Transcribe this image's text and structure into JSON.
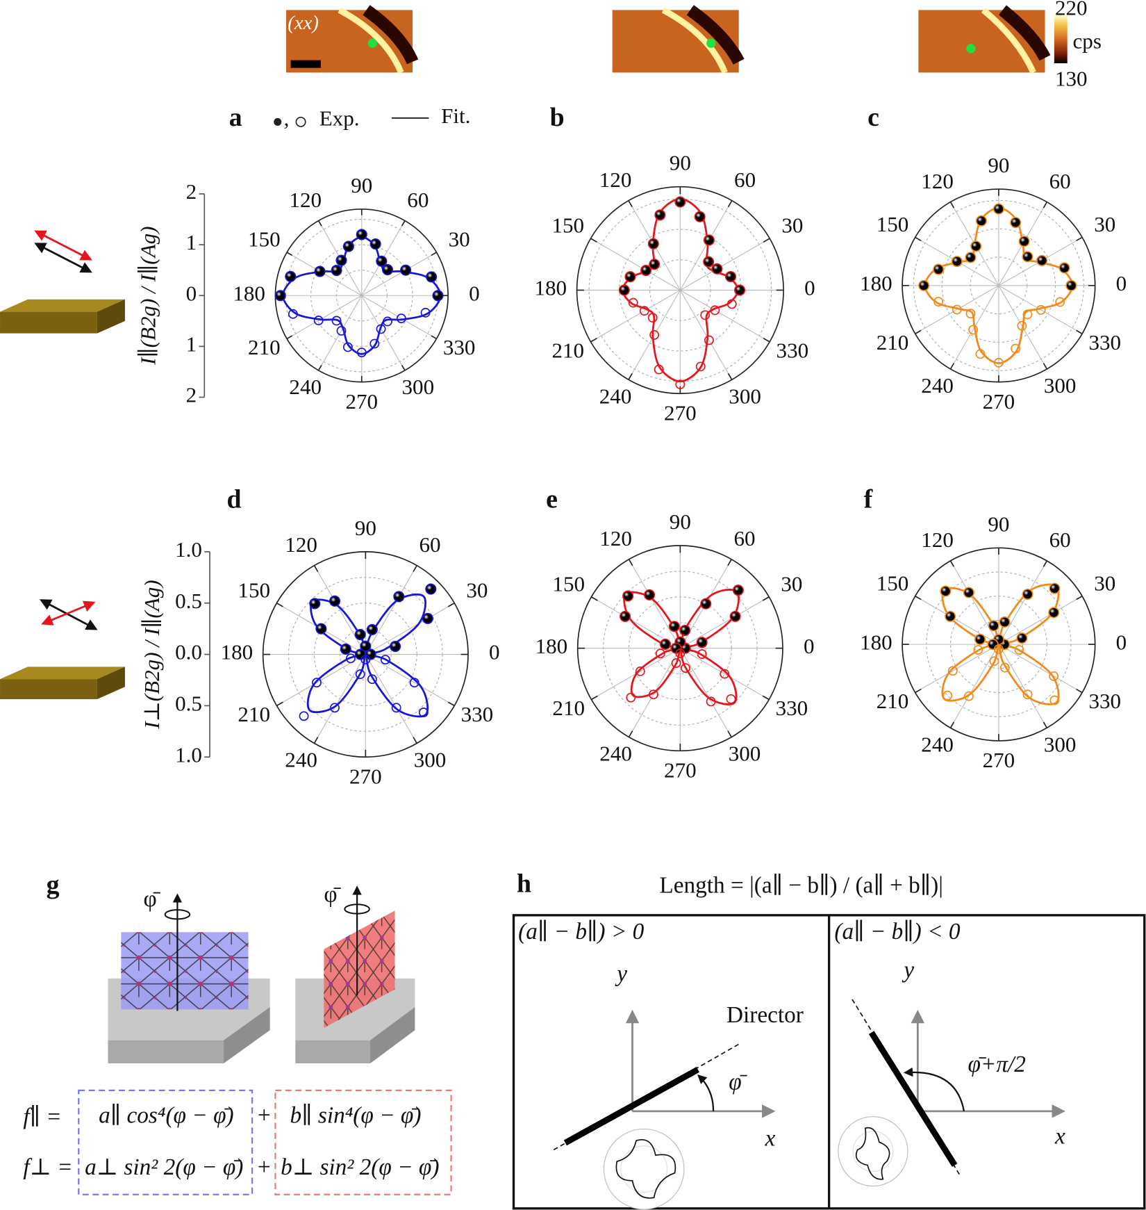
{
  "insets": {
    "label": "(xx)",
    "colorbar": {
      "max": 220,
      "unit": "cps",
      "min": 130
    }
  },
  "chart_data": [
    {
      "type": "polar",
      "panel": "a",
      "legend": true,
      "rlim": [
        0,
        1.7
      ],
      "rticks": [
        0.5,
        1,
        1.5
      ],
      "ylabel": "I∥(B2g) / I∥(Ag)",
      "yticks": [
        2,
        1,
        0,
        {
          "value": -1,
          "label": "1"
        },
        {
          "value": -2,
          "label": "2"
        }
      ],
      "color": "#1717d8",
      "theta_ticks": [
        0,
        30,
        60,
        90,
        120,
        150,
        180,
        210,
        240,
        270,
        300,
        330
      ],
      "theta": [
        0,
        15,
        30,
        45,
        60,
        75,
        90,
        105,
        120,
        135,
        150,
        165,
        180,
        195,
        210,
        225,
        240,
        255,
        270,
        285,
        300,
        315,
        330,
        345
      ],
      "series": [
        {
          "name": "Exp.",
          "values": [
            1.5,
            1.42,
            1.0,
            0.72,
            0.78,
            1.05,
            1.2,
            1.0,
            0.8,
            0.7,
            0.95,
            1.45,
            1.6,
            1.4,
            0.98,
            0.7,
            0.8,
            1.05,
            1.12,
            0.98,
            0.76,
            0.72,
            0.9,
            1.3
          ]
        },
        {
          "name": "Fit.",
          "values": [
            1.55,
            1.35,
            0.94,
            0.68,
            0.74,
            1.01,
            1.15,
            1.01,
            0.74,
            0.68,
            0.94,
            1.35,
            1.55,
            1.35,
            0.94,
            0.68,
            0.74,
            1.01,
            1.15,
            1.01,
            0.74,
            0.68,
            0.94,
            1.35
          ]
        }
      ]
    },
    {
      "type": "polar",
      "panel": "b",
      "rlim": [
        0,
        1.7
      ],
      "rticks": [
        0.5,
        1,
        1.5
      ],
      "color": "#e8141c",
      "theta_ticks": [
        0,
        30,
        60,
        90,
        120,
        150,
        180,
        210,
        240,
        270,
        300,
        330
      ],
      "theta": [
        0,
        15,
        30,
        45,
        60,
        75,
        90,
        105,
        120,
        135,
        150,
        165,
        180,
        195,
        210,
        225,
        240,
        255,
        270,
        285,
        300,
        315,
        330,
        345
      ],
      "series": [
        {
          "values": [
            0.98,
            0.86,
            0.7,
            0.66,
            0.95,
            1.25,
            1.45,
            1.28,
            0.88,
            0.6,
            0.65,
            0.85,
            0.92,
            0.8,
            0.68,
            0.64,
            0.85,
            1.35,
            1.55,
            1.3,
            0.95,
            0.58,
            0.66,
            0.88
          ]
        },
        {
          "values": [
            0.95,
            0.83,
            0.63,
            0.61,
            0.9,
            1.31,
            1.5,
            1.31,
            0.9,
            0.61,
            0.63,
            0.83,
            0.95,
            0.83,
            0.63,
            0.61,
            0.9,
            1.31,
            1.5,
            1.31,
            0.9,
            0.61,
            0.63,
            0.83
          ]
        }
      ]
    },
    {
      "type": "polar",
      "panel": "c",
      "rlim": [
        0,
        1.7
      ],
      "rticks": [
        0.5,
        1,
        1.5
      ],
      "color": "#f28a1a",
      "theta_ticks": [
        0,
        30,
        60,
        90,
        120,
        150,
        180,
        210,
        240,
        270,
        300,
        330
      ],
      "theta": [
        0,
        15,
        30,
        45,
        60,
        75,
        90,
        105,
        120,
        135,
        150,
        165,
        180,
        195,
        210,
        225,
        240,
        255,
        270,
        285,
        300,
        315,
        330,
        345
      ],
      "series": [
        {
          "values": [
            1.28,
            1.2,
            0.88,
            0.72,
            0.9,
            1.15,
            1.35,
            1.18,
            0.8,
            0.7,
            0.85,
            1.1,
            1.32,
            1.1,
            0.85,
            0.7,
            0.9,
            1.25,
            1.36,
            1.15,
            0.82,
            0.72,
            0.86,
            1.12
          ]
        },
        {
          "values": [
            1.3,
            1.14,
            0.82,
            0.67,
            0.85,
            1.2,
            1.37,
            1.2,
            0.85,
            0.67,
            0.82,
            1.14,
            1.3,
            1.14,
            0.82,
            0.67,
            0.85,
            1.2,
            1.37,
            1.2,
            0.85,
            0.67,
            0.82,
            1.14
          ]
        }
      ]
    },
    {
      "type": "polar",
      "panel": "d",
      "rlim": [
        0,
        1
      ],
      "rticks": [
        0.25,
        0.5,
        0.75
      ],
      "ylabel": "I⊥(B2g) / I∥(Ag)",
      "yticks": [
        {
          "value": 1,
          "label": "1.0"
        },
        0.5,
        {
          "value": 0,
          "label": "0.0"
        },
        {
          "value": -0.5,
          "label": "0.5"
        },
        {
          "value": -1,
          "label": "1.0"
        }
      ],
      "color": "#1717d8",
      "theta_ticks": [
        0,
        30,
        60,
        90,
        120,
        150,
        180,
        210,
        240,
        270,
        300,
        330
      ],
      "theta": [
        0,
        15,
        30,
        45,
        60,
        75,
        90,
        105,
        120,
        135,
        150,
        165,
        180,
        195,
        210,
        225,
        240,
        255,
        270,
        285,
        300,
        315,
        330,
        345
      ],
      "series": [
        {
          "values": [
            0.05,
            0.3,
            0.7,
            0.9,
            0.65,
            0.25,
            0.08,
            0.2,
            0.6,
            0.7,
            0.5,
            0.2,
            0.05,
            0.15,
            0.55,
            0.85,
            0.6,
            0.2,
            0.05,
            0.25,
            0.6,
            0.8,
            0.55,
            0.2
          ]
        },
        {
          "values": [
            0,
            0.2,
            0.6,
            0.8,
            0.6,
            0.2,
            0,
            0.18,
            0.55,
            0.73,
            0.55,
            0.18,
            0,
            0.19,
            0.58,
            0.77,
            0.58,
            0.19,
            0,
            0.21,
            0.62,
            0.83,
            0.62,
            0.21
          ]
        }
      ]
    },
    {
      "type": "polar",
      "panel": "e",
      "rlim": [
        0,
        1
      ],
      "rticks": [
        0.25,
        0.5,
        0.75
      ],
      "color": "#e8141c",
      "theta_ticks": [
        0,
        30,
        60,
        90,
        120,
        150,
        180,
        210,
        240,
        270,
        300,
        330
      ],
      "theta": [
        0,
        15,
        30,
        45,
        60,
        75,
        90,
        105,
        120,
        135,
        150,
        165,
        180,
        195,
        210,
        225,
        240,
        255,
        270,
        285,
        300,
        315,
        330,
        345
      ],
      "series": [
        {
          "values": [
            0.05,
            0.22,
            0.62,
            0.8,
            0.5,
            0.18,
            0.06,
            0.22,
            0.6,
            0.72,
            0.62,
            0.15,
            0.04,
            0.2,
            0.45,
            0.68,
            0.52,
            0.15,
            0.05,
            0.2,
            0.6,
            0.7,
            0.5,
            0.22
          ]
        },
        {
          "values": [
            0,
            0.2,
            0.59,
            0.78,
            0.59,
            0.2,
            0,
            0.19,
            0.56,
            0.75,
            0.56,
            0.19,
            0,
            0.16,
            0.49,
            0.65,
            0.49,
            0.16,
            0,
            0.19,
            0.56,
            0.75,
            0.56,
            0.19
          ]
        }
      ]
    },
    {
      "type": "polar",
      "panel": "f",
      "rlim": [
        0,
        1
      ],
      "rticks": [
        0.25,
        0.5,
        0.75
      ],
      "color": "#f28a1a",
      "theta_ticks": [
        0,
        30,
        60,
        90,
        120,
        150,
        180,
        210,
        240,
        270,
        300,
        330
      ],
      "theta": [
        0,
        15,
        30,
        45,
        60,
        75,
        90,
        105,
        120,
        135,
        150,
        165,
        180,
        195,
        210,
        225,
        240,
        255,
        270,
        285,
        300,
        315,
        330,
        345
      ],
      "series": [
        {
          "values": [
            0.06,
            0.25,
            0.66,
            0.82,
            0.6,
            0.24,
            0.05,
            0.2,
            0.62,
            0.78,
            0.58,
            0.2,
            0.06,
            0.22,
            0.55,
            0.75,
            0.62,
            0.18,
            0.05,
            0.25,
            0.6,
            0.82,
            0.66,
            0.22
          ]
        },
        {
          "values": [
            0,
            0.21,
            0.64,
            0.85,
            0.64,
            0.21,
            0,
            0.2,
            0.6,
            0.8,
            0.6,
            0.2,
            0,
            0.2,
            0.6,
            0.8,
            0.6,
            0.2,
            0,
            0.21,
            0.64,
            0.85,
            0.64,
            0.21
          ]
        }
      ]
    }
  ],
  "panel_g": {
    "label": "g",
    "axis": "φ̄",
    "f_par": "f∥ =",
    "a_par": "a∥ cos⁴(φ − φ̄)",
    "plus1": "+",
    "b_par": "b∥ sin⁴(φ − φ̄)",
    "f_perp": "f⊥ =",
    "a_perp": "a⊥ sin² 2(φ − φ̄)",
    "plus2": "+",
    "b_perp": "b⊥ sin² 2(φ − φ̄)"
  },
  "panel_h": {
    "label": "h",
    "title": "Length = |(a∥ − b∥) / (a∥ + b∥)|",
    "left": {
      "condition": "(a∥ − b∥) > 0",
      "y": "y",
      "x": "x",
      "director": "Director",
      "angle": "φ̄"
    },
    "right": {
      "condition": "(a∥ − b∥) < 0",
      "y": "y",
      "x": "x",
      "angle": "φ̄+π/2"
    }
  }
}
